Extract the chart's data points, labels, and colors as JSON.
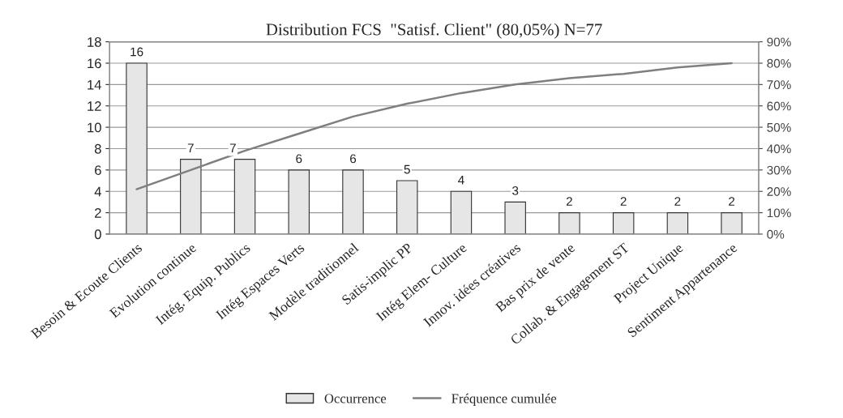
{
  "chart_data": {
    "type": "bar",
    "title": "Distribution FCS  \"Satisf. Client\" (80,05%) N=77",
    "categories": [
      "Besoin & Ecoute Clients",
      "Evolution continue",
      "Intég. Equip. Publics",
      "Intég Espaces Verts",
      "Modèle traditionnel",
      "Satis-implic PP",
      "Intég Elem- Culture",
      "Innov. idées créatives",
      "Bas prix de vente",
      "Collab. & Engagement ST",
      "Project Unique",
      "Sentiment Appartenance"
    ],
    "series": [
      {
        "name": "Occurrence",
        "color": "#e6e6e6",
        "values": [
          16,
          7,
          7,
          6,
          6,
          5,
          4,
          3,
          2,
          2,
          2,
          2
        ],
        "value_labels": [
          "16",
          "7",
          "7",
          "6",
          "6",
          "5",
          "4",
          "3",
          "2",
          "2",
          "2",
          "2"
        ]
      },
      {
        "name": "Fréquence cumulée",
        "type": "line",
        "axis": "y2",
        "color": "#7f7f7f",
        "values": [
          21,
          30,
          39,
          47,
          55,
          61,
          66,
          70,
          73,
          75,
          78,
          80
        ]
      }
    ],
    "ylim": [
      0,
      18
    ],
    "yticks": [
      0,
      2,
      4,
      6,
      8,
      10,
      12,
      14,
      16,
      18
    ],
    "y2lim": [
      0,
      90
    ],
    "y2ticks": [
      {
        "value": 0,
        "label": "0%"
      },
      {
        "value": 10,
        "label": "10%"
      },
      {
        "value": 20,
        "label": "20%"
      },
      {
        "value": 30,
        "label": "30%"
      },
      {
        "value": 40,
        "label": "40%"
      },
      {
        "value": 50,
        "label": "50%"
      },
      {
        "value": 60,
        "label": "60%"
      },
      {
        "value": 70,
        "label": "70%"
      },
      {
        "value": 80,
        "label": "80%"
      },
      {
        "value": 90,
        "label": "90%"
      }
    ],
    "grid": "y",
    "legend": "bottom",
    "marker": "none",
    "line_style": "solid"
  }
}
